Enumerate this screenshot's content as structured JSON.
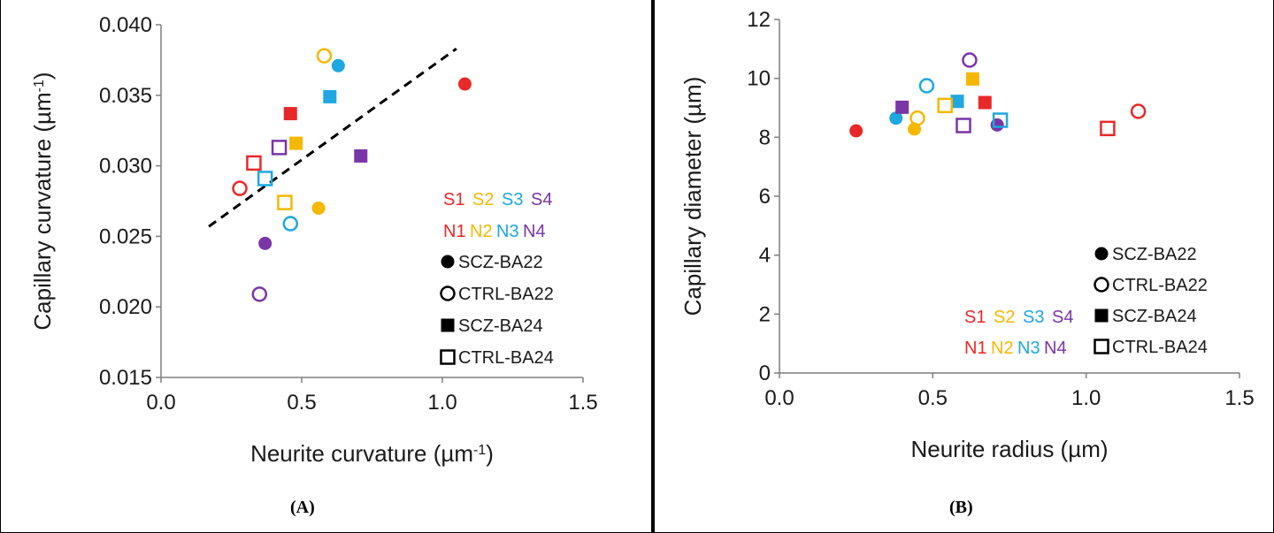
{
  "colors": {
    "S1": "#e8292a",
    "S2": "#f5b800",
    "S3": "#1ea7e1",
    "S4": "#7a35a6",
    "axis": "#7f7f7f",
    "trend": "#000000"
  },
  "key": {
    "row1": [
      {
        "text": "S1",
        "color_key": "S1"
      },
      {
        "text": "S2",
        "color_key": "S2"
      },
      {
        "text": "S3",
        "color_key": "S3"
      },
      {
        "text": "S4",
        "color_key": "S4"
      }
    ],
    "row2": [
      {
        "text": "N1",
        "color_key": "S1"
      },
      {
        "text": "N2",
        "color_key": "S2"
      },
      {
        "text": "N3",
        "color_key": "S3"
      },
      {
        "text": "N4",
        "color_key": "S4"
      }
    ]
  },
  "legend": [
    {
      "label": "SCZ-BA22",
      "marker": "circle",
      "filled": true
    },
    {
      "label": "CTRL-BA22",
      "marker": "circle",
      "filled": false
    },
    {
      "label": "SCZ-BA24",
      "marker": "square",
      "filled": true
    },
    {
      "label": "CTRL-BA24",
      "marker": "square",
      "filled": false
    }
  ],
  "chart_data": [
    {
      "panel_label": "(A)",
      "type": "scatter",
      "xlabel": "Neurite curvature (µm",
      "xlabel_sup": "-1",
      "xlabel_tail": ")",
      "ylabel": "Capillary curvature (µm",
      "ylabel_sup": "-1",
      "ylabel_tail": ")",
      "xlim": [
        0,
        1.5
      ],
      "ylim": [
        0.015,
        0.04
      ],
      "xticks": [
        "0.0",
        "0.5",
        "1.0",
        "1.5"
      ],
      "yticks": [
        "0.015",
        "0.020",
        "0.025",
        "0.030",
        "0.035",
        "0.040"
      ],
      "trendline": {
        "x": [
          0.17,
          1.05
        ],
        "y": [
          0.0257,
          0.0383
        ],
        "style": "dashed"
      },
      "series": [
        {
          "name": "SCZ-BA22",
          "marker": "circle",
          "filled": true,
          "points": [
            {
              "x": 1.08,
              "y": 0.0358,
              "color": "S1"
            },
            {
              "x": 0.56,
              "y": 0.027,
              "color": "S2"
            },
            {
              "x": 0.63,
              "y": 0.0371,
              "color": "S3"
            },
            {
              "x": 0.37,
              "y": 0.0245,
              "color": "S4"
            }
          ]
        },
        {
          "name": "CTRL-BA22",
          "marker": "circle",
          "filled": false,
          "points": [
            {
              "x": 0.28,
              "y": 0.0284,
              "color": "S1"
            },
            {
              "x": 0.58,
              "y": 0.0378,
              "color": "S2"
            },
            {
              "x": 0.46,
              "y": 0.0259,
              "color": "S3"
            },
            {
              "x": 0.35,
              "y": 0.0209,
              "color": "S4"
            }
          ]
        },
        {
          "name": "SCZ-BA24",
          "marker": "square",
          "filled": true,
          "points": [
            {
              "x": 0.46,
              "y": 0.0337,
              "color": "S1"
            },
            {
              "x": 0.48,
              "y": 0.0316,
              "color": "S2"
            },
            {
              "x": 0.6,
              "y": 0.0349,
              "color": "S3"
            },
            {
              "x": 0.71,
              "y": 0.0307,
              "color": "S4"
            }
          ]
        },
        {
          "name": "CTRL-BA24",
          "marker": "square",
          "filled": false,
          "points": [
            {
              "x": 0.33,
              "y": 0.0302,
              "color": "S1"
            },
            {
              "x": 0.44,
              "y": 0.0274,
              "color": "S2"
            },
            {
              "x": 0.37,
              "y": 0.0291,
              "color": "S3"
            },
            {
              "x": 0.42,
              "y": 0.0313,
              "color": "S4"
            }
          ]
        }
      ]
    },
    {
      "panel_label": "(B)",
      "type": "scatter",
      "xlabel": "Neurite radius (µm)",
      "ylabel": "Capillary diameter (µm)",
      "xlim": [
        0,
        1.5
      ],
      "ylim": [
        0,
        12
      ],
      "xticks": [
        "0.0",
        "0.5",
        "1.0",
        "1.5"
      ],
      "yticks": [
        "0",
        "2",
        "4",
        "6",
        "8",
        "10",
        "12"
      ],
      "series": [
        {
          "name": "SCZ-BA22",
          "marker": "circle",
          "filled": true,
          "points": [
            {
              "x": 0.25,
              "y": 8.22,
              "color": "S1"
            },
            {
              "x": 0.44,
              "y": 8.28,
              "color": "S2"
            },
            {
              "x": 0.38,
              "y": 8.65,
              "color": "S3"
            },
            {
              "x": 0.71,
              "y": 8.42,
              "color": "S4"
            }
          ]
        },
        {
          "name": "CTRL-BA22",
          "marker": "circle",
          "filled": false,
          "points": [
            {
              "x": 1.17,
              "y": 8.88,
              "color": "S1"
            },
            {
              "x": 0.45,
              "y": 8.65,
              "color": "S2"
            },
            {
              "x": 0.48,
              "y": 9.75,
              "color": "S3"
            },
            {
              "x": 0.62,
              "y": 10.62,
              "color": "S4"
            }
          ]
        },
        {
          "name": "SCZ-BA24",
          "marker": "square",
          "filled": true,
          "points": [
            {
              "x": 0.67,
              "y": 9.18,
              "color": "S1"
            },
            {
              "x": 0.63,
              "y": 9.98,
              "color": "S2"
            },
            {
              "x": 0.58,
              "y": 9.22,
              "color": "S3"
            },
            {
              "x": 0.4,
              "y": 9.02,
              "color": "S4"
            }
          ]
        },
        {
          "name": "CTRL-BA24",
          "marker": "square",
          "filled": false,
          "points": [
            {
              "x": 1.07,
              "y": 8.3,
              "color": "S1"
            },
            {
              "x": 0.54,
              "y": 9.08,
              "color": "S2"
            },
            {
              "x": 0.72,
              "y": 8.58,
              "color": "S3"
            },
            {
              "x": 0.6,
              "y": 8.4,
              "color": "S4"
            }
          ]
        }
      ]
    }
  ]
}
